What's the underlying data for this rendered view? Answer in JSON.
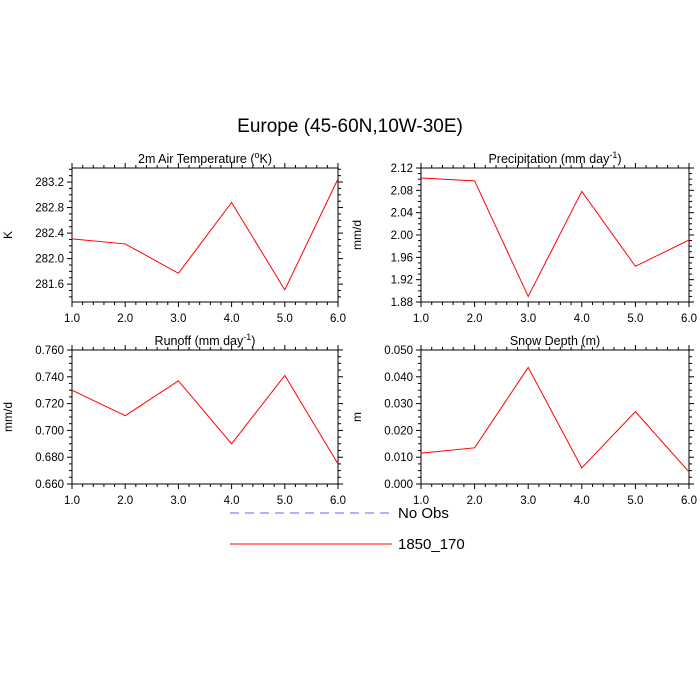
{
  "title": "Europe (45-60N,10W-30E)",
  "legend": [
    {
      "label": "No Obs",
      "color": "#6666ff",
      "dash": true
    },
    {
      "label": "1850_170",
      "color": "#ff0000",
      "dash": false
    }
  ],
  "chart_data": [
    {
      "type": "line",
      "title": "2m Air Temperature (°K)",
      "title_parts": {
        "before": "2m Air Temperature (",
        "sup": "o",
        "after": "K)"
      },
      "xlabel": "",
      "ylabel": "K",
      "x": [
        1,
        2,
        3,
        4,
        5,
        6
      ],
      "xticks": [
        "1.0",
        "2.0",
        "3.0",
        "4.0",
        "5.0",
        "6.0"
      ],
      "xlim": [
        1,
        6
      ],
      "ylim": [
        281.32,
        283.42
      ],
      "yticks": [
        281.6,
        282.0,
        282.4,
        282.8,
        283.2
      ],
      "yticklabels": [
        "281.6",
        "282.0",
        "282.4",
        "282.8",
        "283.2"
      ],
      "series": [
        {
          "name": "1850_170",
          "color": "#ff0000",
          "values": [
            282.31,
            282.23,
            281.77,
            282.88,
            281.51,
            283.25
          ]
        }
      ]
    },
    {
      "type": "line",
      "title": "Precipitation (mm day-1)",
      "title_parts": {
        "before": "Precipitation (mm day",
        "sup": "-1",
        "after": ")"
      },
      "xlabel": "",
      "ylabel": "mm/d",
      "x": [
        1,
        2,
        3,
        4,
        5,
        6
      ],
      "xticks": [
        "1.0",
        "2.0",
        "3.0",
        "4.0",
        "5.0",
        "6.0"
      ],
      "xlim": [
        1,
        6
      ],
      "ylim": [
        1.88,
        2.12
      ],
      "yticks": [
        1.88,
        1.92,
        1.96,
        2.0,
        2.04,
        2.08,
        2.12
      ],
      "yticklabels": [
        "1.88",
        "1.92",
        "1.96",
        "2.00",
        "2.04",
        "2.08",
        "2.12"
      ],
      "series": [
        {
          "name": "1850_170",
          "color": "#ff0000",
          "values": [
            2.102,
            2.097,
            1.89,
            2.078,
            1.944,
            1.991
          ]
        }
      ]
    },
    {
      "type": "line",
      "title": "Runoff (mm day-1)",
      "title_parts": {
        "before": "Runoff (mm day",
        "sup": "-1",
        "after": ")"
      },
      "xlabel": "",
      "ylabel": "mm/d",
      "x": [
        1,
        2,
        3,
        4,
        5,
        6
      ],
      "xticks": [
        "1.0",
        "2.0",
        "3.0",
        "4.0",
        "5.0",
        "6.0"
      ],
      "xlim": [
        1,
        6
      ],
      "ylim": [
        0.66,
        0.76
      ],
      "yticks": [
        0.66,
        0.68,
        0.7,
        0.72,
        0.74,
        0.76
      ],
      "yticklabels": [
        "0.660",
        "0.680",
        "0.700",
        "0.720",
        "0.740",
        "0.760"
      ],
      "series": [
        {
          "name": "1850_170",
          "color": "#ff0000",
          "values": [
            0.73,
            0.711,
            0.737,
            0.69,
            0.741,
            0.675
          ]
        }
      ]
    },
    {
      "type": "line",
      "title": "Snow Depth (m)",
      "title_parts": {
        "before": "Snow Depth (m)",
        "sup": "",
        "after": ""
      },
      "xlabel": "",
      "ylabel": "m",
      "x": [
        1,
        2,
        3,
        4,
        5,
        6
      ],
      "xticks": [
        "1.0",
        "2.0",
        "3.0",
        "4.0",
        "5.0",
        "6.0"
      ],
      "xlim": [
        1,
        6
      ],
      "ylim": [
        0,
        0.05
      ],
      "yticks": [
        0,
        0.01,
        0.02,
        0.03,
        0.04,
        0.05
      ],
      "yticklabels": [
        "0.000",
        "0.010",
        "0.020",
        "0.030",
        "0.040",
        "0.050"
      ],
      "series": [
        {
          "name": "1850_170",
          "color": "#ff0000",
          "values": [
            0.0115,
            0.0135,
            0.0435,
            0.006,
            0.027,
            0.0045
          ]
        }
      ]
    }
  ]
}
